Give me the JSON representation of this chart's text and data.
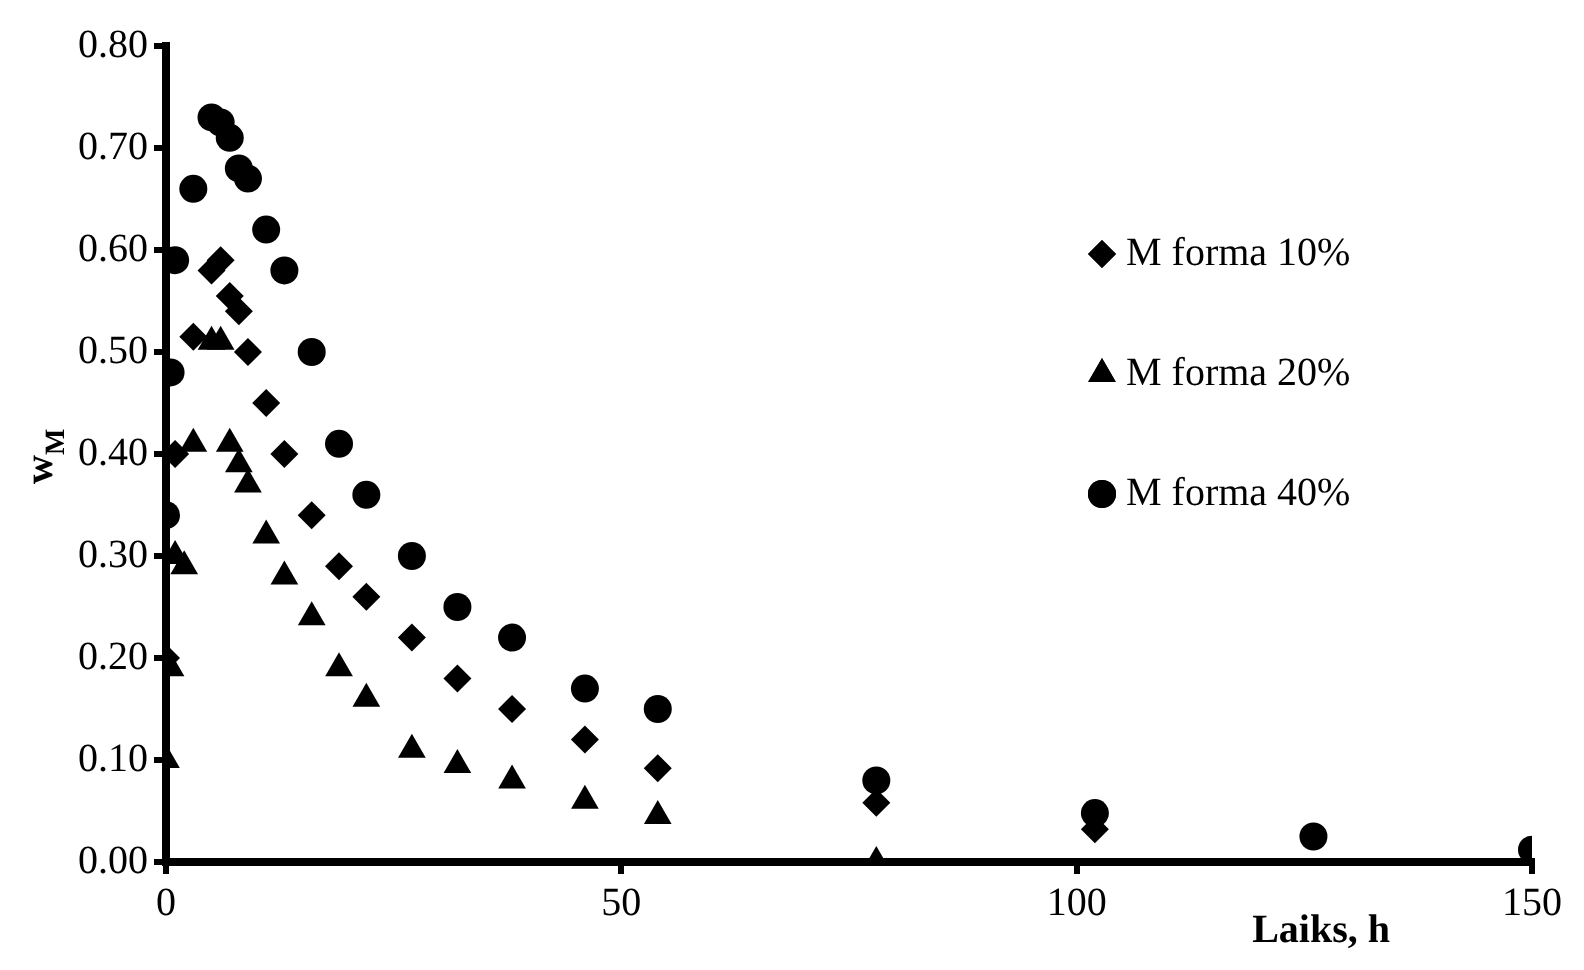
{
  "chart_data": {
    "type": "scatter",
    "xlabel": "Laiks, h",
    "ylabel": "w$_{M}$",
    "xlim": [
      0,
      150
    ],
    "xticks": [
      0,
      50,
      100,
      150
    ],
    "ylim": [
      0,
      0.8
    ],
    "yticks": [
      {
        "value": 0,
        "label": "0.00"
      },
      {
        "value": 0.1,
        "label": "0.10"
      },
      {
        "value": 0.2,
        "label": "0.20"
      },
      {
        "value": 0.3,
        "label": "0.30"
      },
      {
        "value": 0.4,
        "label": "0.40"
      },
      {
        "value": 0.5,
        "label": "0.50"
      },
      {
        "value": 0.6,
        "label": "0.60"
      },
      {
        "value": 0.7,
        "label": "0.70"
      },
      {
        "value": 0.8,
        "label": "0.80"
      }
    ],
    "grid": false,
    "legend": "right",
    "series": [
      {
        "name": "M forma 10%",
        "color": "#000000",
        "marker": "diamond",
        "x": [
          0,
          1,
          3,
          5,
          6,
          7,
          8,
          9,
          11,
          13,
          16,
          19,
          22,
          27,
          32,
          38,
          46,
          54,
          78,
          102
        ],
        "values": [
          0.2,
          0.4,
          0.515,
          0.58,
          0.59,
          0.555,
          0.54,
          0.5,
          0.45,
          0.4,
          0.34,
          0.29,
          0.26,
          0.22,
          0.18,
          0.15,
          0.12,
          0.092,
          0.058,
          0.032
        ]
      },
      {
        "name": "M forma 20%",
        "color": "#000000",
        "marker": "triangle",
        "x": [
          0,
          0.5,
          1,
          2,
          3,
          5,
          6,
          7,
          8,
          9,
          11,
          13,
          16,
          19,
          22,
          27,
          32,
          38,
          46,
          54,
          78
        ],
        "values": [
          0.1,
          0.19,
          0.3,
          0.29,
          0.41,
          0.51,
          0.51,
          0.41,
          0.39,
          0.37,
          0.32,
          0.28,
          0.24,
          0.19,
          0.16,
          0.11,
          0.095,
          0.08,
          0.06,
          0.045,
          0.0
        ]
      },
      {
        "name": "M forma 40%",
        "color": "#000000",
        "marker": "circle",
        "x": [
          0,
          0.5,
          1,
          3,
          5,
          6,
          7,
          8,
          9,
          11,
          13,
          16,
          19,
          22,
          27,
          32,
          38,
          46,
          54,
          78,
          102,
          126,
          150
        ],
        "values": [
          0.34,
          0.48,
          0.59,
          0.66,
          0.73,
          0.725,
          0.71,
          0.68,
          0.67,
          0.62,
          0.58,
          0.5,
          0.41,
          0.36,
          0.3,
          0.25,
          0.22,
          0.17,
          0.15,
          0.08,
          0.048,
          0.025,
          0.012
        ]
      }
    ]
  }
}
